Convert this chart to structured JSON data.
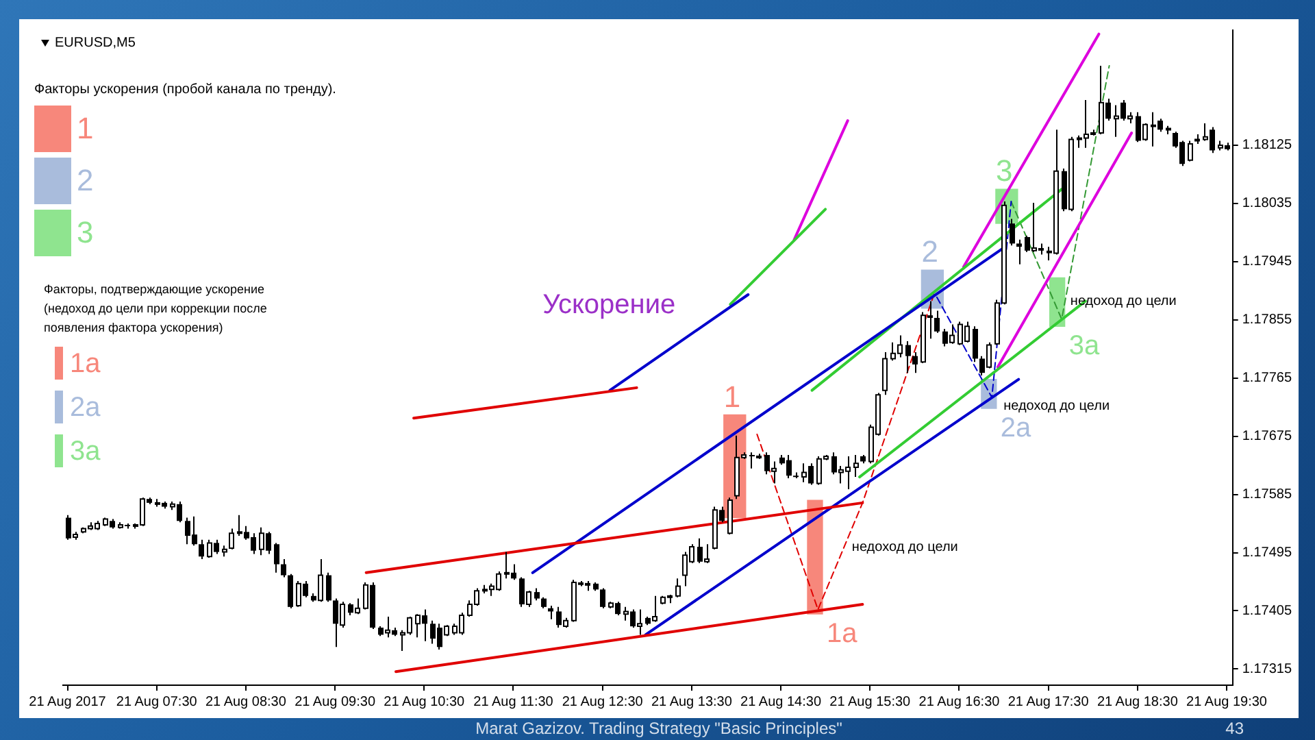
{
  "chart_data": {
    "type": "candlestick",
    "title": "EURUSD,M5",
    "x": [
      "2017-08-21T06:30",
      "2017-08-21T06:35",
      "2017-08-21T06:40",
      "2017-08-21T06:45",
      "2017-08-21T06:50",
      "2017-08-21T06:55",
      "2017-08-21T07:00",
      "2017-08-21T07:05",
      "2017-08-21T07:10",
      "2017-08-21T07:15",
      "2017-08-21T07:20",
      "2017-08-21T07:25",
      "2017-08-21T07:30",
      "2017-08-21T07:35",
      "2017-08-21T07:40",
      "2017-08-21T07:45",
      "2017-08-21T07:50",
      "2017-08-21T07:55",
      "2017-08-21T08:00",
      "2017-08-21T08:05",
      "2017-08-21T08:10",
      "2017-08-21T08:15",
      "2017-08-21T08:20",
      "2017-08-21T08:25",
      "2017-08-21T08:30",
      "2017-08-21T08:35",
      "2017-08-21T08:40",
      "2017-08-21T08:45",
      "2017-08-21T08:50",
      "2017-08-21T08:55",
      "2017-08-21T09:00",
      "2017-08-21T09:05",
      "2017-08-21T09:10",
      "2017-08-21T09:15",
      "2017-08-21T09:20",
      "2017-08-21T09:25",
      "2017-08-21T09:30",
      "2017-08-21T09:35",
      "2017-08-21T09:40",
      "2017-08-21T09:45",
      "2017-08-21T09:50",
      "2017-08-21T09:55",
      "2017-08-21T10:00",
      "2017-08-21T10:05",
      "2017-08-21T10:10",
      "2017-08-21T10:15",
      "2017-08-21T10:20",
      "2017-08-21T10:25",
      "2017-08-21T10:30",
      "2017-08-21T10:35",
      "2017-08-21T10:40",
      "2017-08-21T10:45",
      "2017-08-21T10:50",
      "2017-08-21T10:55",
      "2017-08-21T11:00",
      "2017-08-21T11:05",
      "2017-08-21T11:10",
      "2017-08-21T11:15",
      "2017-08-21T11:20",
      "2017-08-21T11:25",
      "2017-08-21T11:30",
      "2017-08-21T11:35",
      "2017-08-21T11:40",
      "2017-08-21T11:45",
      "2017-08-21T11:50",
      "2017-08-21T11:55",
      "2017-08-21T12:00",
      "2017-08-21T12:05",
      "2017-08-21T12:10",
      "2017-08-21T12:15",
      "2017-08-21T12:20",
      "2017-08-21T12:25",
      "2017-08-21T12:30",
      "2017-08-21T12:35",
      "2017-08-21T12:40",
      "2017-08-21T12:45",
      "2017-08-21T12:50",
      "2017-08-21T12:55",
      "2017-08-21T13:00",
      "2017-08-21T13:05",
      "2017-08-21T13:10",
      "2017-08-21T13:15",
      "2017-08-21T13:20",
      "2017-08-21T13:25",
      "2017-08-21T13:30",
      "2017-08-21T13:35",
      "2017-08-21T13:40",
      "2017-08-21T13:45",
      "2017-08-21T13:50",
      "2017-08-21T13:55",
      "2017-08-21T14:00",
      "2017-08-21T14:05",
      "2017-08-21T14:10",
      "2017-08-21T14:15",
      "2017-08-21T14:20",
      "2017-08-21T14:25",
      "2017-08-21T14:30",
      "2017-08-21T14:35",
      "2017-08-21T14:40",
      "2017-08-21T14:45",
      "2017-08-21T14:50",
      "2017-08-21T14:55",
      "2017-08-21T15:00",
      "2017-08-21T15:05",
      "2017-08-21T15:10",
      "2017-08-21T15:15",
      "2017-08-21T15:20",
      "2017-08-21T15:25",
      "2017-08-21T15:30",
      "2017-08-21T15:35",
      "2017-08-21T15:40",
      "2017-08-21T15:45",
      "2017-08-21T15:50",
      "2017-08-21T15:55",
      "2017-08-21T16:00",
      "2017-08-21T16:05",
      "2017-08-21T16:10",
      "2017-08-21T16:15",
      "2017-08-21T16:20",
      "2017-08-21T16:25",
      "2017-08-21T16:30",
      "2017-08-21T16:35",
      "2017-08-21T16:40",
      "2017-08-21T16:45",
      "2017-08-21T16:50",
      "2017-08-21T16:55",
      "2017-08-21T17:00",
      "2017-08-21T17:05",
      "2017-08-21T17:10",
      "2017-08-21T17:15",
      "2017-08-21T17:20",
      "2017-08-21T17:25",
      "2017-08-21T17:30",
      "2017-08-21T17:35",
      "2017-08-21T17:40",
      "2017-08-21T17:45",
      "2017-08-21T17:50",
      "2017-08-21T17:55",
      "2017-08-21T18:00",
      "2017-08-21T18:05",
      "2017-08-21T18:10",
      "2017-08-21T18:15",
      "2017-08-21T18:20",
      "2017-08-21T18:25",
      "2017-08-21T18:30",
      "2017-08-21T18:35",
      "2017-08-21T18:40",
      "2017-08-21T18:45",
      "2017-08-21T18:50",
      "2017-08-21T18:55",
      "2017-08-21T19:00",
      "2017-08-21T19:05",
      "2017-08-21T19:10",
      "2017-08-21T19:15",
      "2017-08-21T19:20",
      "2017-08-21T19:25",
      "2017-08-21T19:30"
    ],
    "ohlc": [
      [
        1.17549,
        1.17553,
        1.17515,
        1.17517
      ],
      [
        1.17519,
        1.17527,
        1.17515,
        1.17523
      ],
      [
        1.17527,
        1.17534,
        1.17525,
        1.17532
      ],
      [
        1.17532,
        1.17542,
        1.1753,
        1.17536
      ],
      [
        1.17532,
        1.17544,
        1.1753,
        1.1754
      ],
      [
        1.17538,
        1.17549,
        1.17536,
        1.17547
      ],
      [
        1.17544,
        1.17547,
        1.17532,
        1.17534
      ],
      [
        1.17534,
        1.17542,
        1.17532,
        1.17538
      ],
      [
        1.17538,
        1.1754,
        1.17532,
        1.17536
      ],
      [
        1.17536,
        1.1754,
        1.17532,
        1.17538
      ],
      [
        1.17538,
        1.1758,
        1.17536,
        1.17578
      ],
      [
        1.17578,
        1.1758,
        1.1757,
        1.17572
      ],
      [
        1.17572,
        1.17578,
        1.17566,
        1.17572
      ],
      [
        1.17572,
        1.17574,
        1.17563,
        1.17566
      ],
      [
        1.17566,
        1.17574,
        1.17561,
        1.1757
      ],
      [
        1.1757,
        1.17574,
        1.17542,
        1.17544
      ],
      [
        1.17544,
        1.17549,
        1.17508,
        1.17521
      ],
      [
        1.17523,
        1.17551,
        1.17506,
        1.17508
      ],
      [
        1.17508,
        1.17515,
        1.17485,
        1.17489
      ],
      [
        1.17489,
        1.17515,
        1.17487,
        1.1751
      ],
      [
        1.1751,
        1.17515,
        1.17493,
        1.17496
      ],
      [
        1.17496,
        1.17506,
        1.17489,
        1.175
      ],
      [
        1.17502,
        1.17532,
        1.175,
        1.17525
      ],
      [
        1.17525,
        1.17553,
        1.17521,
        1.17527
      ],
      [
        1.17527,
        1.17536,
        1.17515,
        1.17517
      ],
      [
        1.17519,
        1.17525,
        1.17493,
        1.17498
      ],
      [
        1.175,
        1.17534,
        1.17491,
        1.17525
      ],
      [
        1.17525,
        1.17527,
        1.17493,
        1.17498
      ],
      [
        1.17508,
        1.1751,
        1.17464,
        1.17477
      ],
      [
        1.17477,
        1.17485,
        1.17457,
        1.1746
      ],
      [
        1.1746,
        1.17462,
        1.17409,
        1.17411
      ],
      [
        1.17413,
        1.17451,
        1.17411,
        1.17447
      ],
      [
        1.17447,
        1.17451,
        1.17426,
        1.17428
      ],
      [
        1.17428,
        1.17432,
        1.17419,
        1.17421
      ],
      [
        1.17421,
        1.17485,
        1.17419,
        1.1746
      ],
      [
        1.1746,
        1.17464,
        1.17419,
        1.17421
      ],
      [
        1.17421,
        1.17424,
        1.17349,
        1.17385
      ],
      [
        1.17383,
        1.17419,
        1.17379,
        1.17415
      ],
      [
        1.17415,
        1.17417,
        1.17398,
        1.17402
      ],
      [
        1.17402,
        1.17424,
        1.174,
        1.17409
      ],
      [
        1.17409,
        1.17449,
        1.17407,
        1.17445
      ],
      [
        1.17445,
        1.17449,
        1.17377,
        1.17379
      ],
      [
        1.17379,
        1.17381,
        1.17366,
        1.17368
      ],
      [
        1.17371,
        1.17396,
        1.17364,
        1.17375
      ],
      [
        1.17375,
        1.17379,
        1.17366,
        1.17368
      ],
      [
        1.17368,
        1.17375,
        1.17343,
        1.17371
      ],
      [
        1.17371,
        1.17396,
        1.17368,
        1.17394
      ],
      [
        1.17385,
        1.174,
        1.17364,
        1.17398
      ],
      [
        1.17398,
        1.17407,
        1.17358,
        1.17385
      ],
      [
        1.17385,
        1.1739,
        1.17354,
        1.17362
      ],
      [
        1.17379,
        1.17385,
        1.17345,
        1.17349
      ],
      [
        1.17368,
        1.17383,
        1.17366,
        1.17381
      ],
      [
        1.17371,
        1.17385,
        1.17368,
        1.17381
      ],
      [
        1.17371,
        1.17402,
        1.17368,
        1.17398
      ],
      [
        1.17398,
        1.17421,
        1.17396,
        1.17415
      ],
      [
        1.17415,
        1.1744,
        1.17413,
        1.17436
      ],
      [
        1.17436,
        1.17445,
        1.17432,
        1.17438
      ],
      [
        1.17438,
        1.17447,
        1.17428,
        1.17443
      ],
      [
        1.17438,
        1.17466,
        1.17436,
        1.17462
      ],
      [
        1.17462,
        1.17496,
        1.17455,
        1.17464
      ],
      [
        1.17464,
        1.17477,
        1.17453,
        1.17455
      ],
      [
        1.17455,
        1.17457,
        1.17411,
        1.17415
      ],
      [
        1.17415,
        1.17436,
        1.17411,
        1.17434
      ],
      [
        1.17434,
        1.1744,
        1.17421,
        1.17424
      ],
      [
        1.17424,
        1.17426,
        1.17409,
        1.17411
      ],
      [
        1.17409,
        1.17413,
        1.17392,
        1.17404
      ],
      [
        1.17404,
        1.17411,
        1.17379,
        1.17383
      ],
      [
        1.17381,
        1.17394,
        1.17379,
        1.1739
      ],
      [
        1.1739,
        1.17453,
        1.17388,
        1.17449
      ],
      [
        1.17449,
        1.17451,
        1.17443,
        1.17445
      ],
      [
        1.17445,
        1.17451,
        1.17436,
        1.17447
      ],
      [
        1.17447,
        1.17449,
        1.17436,
        1.17438
      ],
      [
        1.17438,
        1.1744,
        1.17409,
        1.17411
      ],
      [
        1.17411,
        1.17419,
        1.17409,
        1.17417
      ],
      [
        1.17417,
        1.17419,
        1.17398,
        1.174
      ],
      [
        1.174,
        1.17411,
        1.1739,
        1.17404
      ],
      [
        1.17404,
        1.17407,
        1.17379,
        1.17381
      ],
      [
        1.17381,
        1.17407,
        1.17368,
        1.17385
      ],
      [
        1.17394,
        1.17396,
        1.17383,
        1.17385
      ],
      [
        1.1739,
        1.17428,
        1.17388,
        1.17396
      ],
      [
        1.17417,
        1.17428,
        1.17415,
        1.17426
      ],
      [
        1.17426,
        1.1743,
        1.17417,
        1.17428
      ],
      [
        1.17428,
        1.17455,
        1.17426,
        1.17443
      ],
      [
        1.1746,
        1.17496,
        1.17443,
        1.17491
      ],
      [
        1.17481,
        1.17508,
        1.17479,
        1.17504
      ],
      [
        1.17504,
        1.17517,
        1.17479,
        1.17481
      ],
      [
        1.17481,
        1.17508,
        1.17479,
        1.17485
      ],
      [
        1.17502,
        1.17566,
        1.175,
        1.17561
      ],
      [
        1.17561,
        1.17566,
        1.17542,
        1.17544
      ],
      [
        1.17525,
        1.1758,
        1.17523,
        1.17576
      ],
      [
        1.17583,
        1.17676,
        1.17578,
        1.17642
      ],
      [
        1.17642,
        1.1765,
        1.1764,
        1.17646
      ],
      [
        1.17646,
        1.1765,
        1.17625,
        1.17644
      ],
      [
        1.17644,
        1.17648,
        1.1764,
        1.17644
      ],
      [
        1.17646,
        1.1765,
        1.17616,
        1.17621
      ],
      [
        1.17621,
        1.17636,
        1.17602,
        1.17625
      ],
      [
        1.17642,
        1.17646,
        1.17631,
        1.17633
      ],
      [
        1.17638,
        1.17646,
        1.1761,
        1.17614
      ],
      [
        1.17614,
        1.17619,
        1.1761,
        1.17612
      ],
      [
        1.17612,
        1.17633,
        1.17604,
        1.17619
      ],
      [
        1.17629,
        1.17633,
        1.176,
        1.17602
      ],
      [
        1.17602,
        1.17644,
        1.176,
        1.1764
      ],
      [
        1.1764,
        1.17646,
        1.17638,
        1.17644
      ],
      [
        1.17644,
        1.1765,
        1.17616,
        1.17619
      ],
      [
        1.17619,
        1.17629,
        1.17602,
        1.17623
      ],
      [
        1.17621,
        1.17644,
        1.17593,
        1.17627
      ],
      [
        1.17627,
        1.17646,
        1.17612,
        1.17633
      ],
      [
        1.17644,
        1.17646,
        1.17633,
        1.17636
      ],
      [
        1.17636,
        1.17693,
        1.17633,
        1.17689
      ],
      [
        1.17678,
        1.17742,
        1.17676,
        1.17739
      ],
      [
        1.17746,
        1.17805,
        1.17739,
        1.17795
      ],
      [
        1.17795,
        1.1782,
        1.17792,
        1.17803
      ],
      [
        1.17803,
        1.17831,
        1.17797,
        1.17816
      ],
      [
        1.17816,
        1.17822,
        1.17773,
        1.17799
      ],
      [
        1.17799,
        1.17805,
        1.17773,
        1.17786
      ],
      [
        1.1779,
        1.17867,
        1.17788,
        1.17862
      ],
      [
        1.17862,
        1.17884,
        1.17826,
        1.17858
      ],
      [
        1.17858,
        1.17869,
        1.17835,
        1.17837
      ],
      [
        1.17837,
        1.17841,
        1.17814,
        1.17818
      ],
      [
        1.1782,
        1.17848,
        1.17818,
        1.17831
      ],
      [
        1.17818,
        1.17852,
        1.17816,
        1.17848
      ],
      [
        1.17822,
        1.17852,
        1.1782,
        1.17845
      ],
      [
        1.17841,
        1.17845,
        1.1779,
        1.17795
      ],
      [
        1.17795,
        1.17799,
        1.17769,
        1.17773
      ],
      [
        1.17782,
        1.1782,
        1.1778,
        1.17816
      ],
      [
        1.17818,
        1.17886,
        1.17816,
        1.17881
      ],
      [
        1.17881,
        1.18038,
        1.17879,
        1.18032
      ],
      [
        1.18004,
        1.18011,
        1.1797,
        1.17973
      ],
      [
        1.17973,
        1.17979,
        1.17941,
        1.17968
      ],
      [
        1.17983,
        1.17985,
        1.1796,
        1.17962
      ],
      [
        1.17962,
        1.18036,
        1.1796,
        1.17966
      ],
      [
        1.17966,
        1.17973,
        1.17956,
        1.17962
      ],
      [
        1.17962,
        1.17968,
        1.17947,
        1.17958
      ],
      [
        1.17958,
        1.18149,
        1.17956,
        1.18085
      ],
      [
        1.18085,
        1.18089,
        1.18023,
        1.18026
      ],
      [
        1.18026,
        1.18138,
        1.18023,
        1.18134
      ],
      [
        1.18134,
        1.1814,
        1.18121,
        1.18136
      ],
      [
        1.18136,
        1.18195,
        1.18121,
        1.18142
      ],
      [
        1.18142,
        1.18149,
        1.1814,
        1.18144
      ],
      [
        1.18144,
        1.18248,
        1.18142,
        1.18191
      ],
      [
        1.18191,
        1.18197,
        1.18163,
        1.18166
      ],
      [
        1.18166,
        1.18187,
        1.18138,
        1.1817
      ],
      [
        1.18191,
        1.18195,
        1.18163,
        1.18166
      ],
      [
        1.18166,
        1.18176,
        1.18159,
        1.1817
      ],
      [
        1.1817,
        1.18176,
        1.1813,
        1.18132
      ],
      [
        1.18134,
        1.18159,
        1.18132,
        1.18157
      ],
      [
        1.18157,
        1.18176,
        1.18123,
        1.18153
      ],
      [
        1.18163,
        1.18166,
        1.18146,
        1.18149
      ],
      [
        1.18149,
        1.18155,
        1.18142,
        1.18151
      ],
      [
        1.18144,
        1.18146,
        1.18121,
        1.18123
      ],
      [
        1.1813,
        1.18132,
        1.18093,
        1.18096
      ],
      [
        1.18102,
        1.18132,
        1.181,
        1.18127
      ],
      [
        1.18134,
        1.18142,
        1.18127,
        1.18134
      ],
      [
        1.18134,
        1.18159,
        1.18132,
        1.18138
      ],
      [
        1.18149,
        1.18153,
        1.18113,
        1.18117
      ],
      [
        1.18121,
        1.18132,
        1.18117,
        1.18125
      ],
      [
        1.18125,
        1.18129,
        1.18117,
        1.18119
      ]
    ],
    "xlim": [
      "2017-08-21T06:27",
      "2017-08-21T19:34"
    ],
    "xticks": [
      {
        "value": "2017-08-21T06:30",
        "label": "21 Aug 2017"
      },
      {
        "value": "2017-08-21T07:30",
        "label": "21 Aug 07:30"
      },
      {
        "value": "2017-08-21T08:30",
        "label": "21 Aug 08:30"
      },
      {
        "value": "2017-08-21T09:30",
        "label": "21 Aug 09:30"
      },
      {
        "value": "2017-08-21T10:30",
        "label": "21 Aug 10:30"
      },
      {
        "value": "2017-08-21T11:30",
        "label": "21 Aug 11:30"
      },
      {
        "value": "2017-08-21T12:30",
        "label": "21 Aug 12:30"
      },
      {
        "value": "2017-08-21T13:30",
        "label": "21 Aug 13:30"
      },
      {
        "value": "2017-08-21T14:30",
        "label": "21 Aug 14:30"
      },
      {
        "value": "2017-08-21T15:30",
        "label": "21 Aug 15:30"
      },
      {
        "value": "2017-08-21T16:30",
        "label": "21 Aug 16:30"
      },
      {
        "value": "2017-08-21T17:30",
        "label": "21 Aug 17:30"
      },
      {
        "value": "2017-08-21T18:30",
        "label": "21 Aug 18:30"
      },
      {
        "value": "2017-08-21T19:30",
        "label": "21 Aug 19:30"
      }
    ],
    "ylim": [
      1.1729,
      1.18303
    ],
    "yticks": [
      1.17315,
      1.17405,
      1.17495,
      1.17585,
      1.17675,
      1.17765,
      1.17855,
      1.17945,
      1.18035,
      1.18125
    ],
    "legend": "top left",
    "legend_title": "Факторы ускорения (пробой канала по тренду).",
    "series": [
      {
        "name": "1",
        "type": "bar",
        "color": "#f7877b",
        "x": [
          "2017-08-21T13:59"
        ],
        "base": [
          1.17549
        ],
        "values": [
          0.00159
        ]
      },
      {
        "name": "2",
        "type": "bar",
        "color": "#a9bcdc",
        "x": [
          "2017-08-21T16:12"
        ],
        "base": [
          1.17873
        ],
        "values": [
          0.00059
        ]
      },
      {
        "name": "3",
        "type": "bar",
        "color": "#8fe48f",
        "x": [
          "2017-08-21T17:02"
        ],
        "base": [
          1.18004
        ],
        "values": [
          0.00053
        ]
      },
      {
        "name": "1a",
        "type": "bar",
        "color": "#f7877b",
        "x": [
          "2017-08-21T14:53"
        ],
        "base": [
          1.174
        ],
        "values": [
          0.00176
        ]
      },
      {
        "name": "2a",
        "type": "bar",
        "color": "#a9bcdc",
        "x": [
          "2017-08-21T16:50"
        ],
        "base": [
          1.17718
        ],
        "values": [
          0.00045
        ]
      },
      {
        "name": "3a",
        "type": "bar",
        "color": "#8fe48f",
        "x": [
          "2017-08-21T17:36"
        ],
        "base": [
          1.17845
        ],
        "values": [
          0.00075
        ]
      },
      {
        "type": "line",
        "color": "#e00000",
        "x": [
          "2017-08-21T10:23",
          "2017-08-21T12:53"
        ],
        "values": [
          1.17703,
          1.1775
        ]
      },
      {
        "type": "line",
        "color": "#0000cc",
        "x": [
          "2017-08-21T12:35",
          "2017-08-21T14:08"
        ],
        "values": [
          1.17746,
          1.17894
        ]
      },
      {
        "type": "line",
        "color": "#33cc33",
        "x": [
          "2017-08-21T13:56",
          "2017-08-21T15:00"
        ],
        "values": [
          1.17879,
          1.18026
        ]
      },
      {
        "type": "line",
        "color": "#dd00dd",
        "x": [
          "2017-08-21T14:39",
          "2017-08-21T15:15"
        ],
        "values": [
          1.17979,
          1.18163
        ]
      },
      {
        "type": "line",
        "color": "#e00000",
        "x": [
          "2017-08-21T09:51",
          "2017-08-21T15:25"
        ],
        "values": [
          1.17464,
          1.17572
        ]
      },
      {
        "type": "line",
        "color": "#e00000",
        "x": [
          "2017-08-21T10:11",
          "2017-08-21T15:25"
        ],
        "values": [
          1.17311,
          1.17415
        ]
      },
      {
        "type": "line",
        "color": "#0000cc",
        "x": [
          "2017-08-21T11:43",
          "2017-08-21T17:01"
        ],
        "values": [
          1.17464,
          1.17968
        ]
      },
      {
        "type": "line",
        "color": "#0000cc",
        "x": [
          "2017-08-21T12:59",
          "2017-08-21T17:10"
        ],
        "values": [
          1.17368,
          1.17763
        ]
      },
      {
        "type": "line",
        "color": "#33cc33",
        "x": [
          "2017-08-21T15:23",
          "2017-08-21T17:55"
        ],
        "values": [
          1.17612,
          1.17884
        ]
      },
      {
        "type": "line",
        "color": "#33cc33",
        "x": [
          "2017-08-21T14:51",
          "2017-08-21T17:39"
        ],
        "values": [
          1.17746,
          1.18057
        ]
      },
      {
        "type": "line",
        "color": "#dd00dd",
        "x": [
          "2017-08-21T16:33",
          "2017-08-21T18:04"
        ],
        "values": [
          1.17937,
          1.18297
        ]
      },
      {
        "type": "line",
        "color": "#dd00dd",
        "x": [
          "2017-08-21T16:56",
          "2017-08-21T18:26"
        ],
        "values": [
          1.17782,
          1.18144
        ]
      },
      {
        "type": "line",
        "color": "#e00000",
        "line_style": "dashed",
        "x": [
          "2017-08-21T14:14",
          "2017-08-21T14:55",
          "2017-08-21T15:25",
          "2017-08-21T16:13"
        ],
        "values": [
          1.17678,
          1.17407,
          1.17572,
          1.17894
        ]
      },
      {
        "type": "line",
        "color": "#0000cc",
        "line_style": "dashed",
        "x": [
          "2017-08-21T16:15",
          "2017-08-21T16:52",
          "2017-08-21T17:05"
        ],
        "values": [
          1.1789,
          1.17735,
          1.18038
        ]
      },
      {
        "type": "line",
        "color": "#339933",
        "line_style": "dashed",
        "x": [
          "2017-08-21T17:05",
          "2017-08-21T17:39",
          "2017-08-21T18:11"
        ],
        "values": [
          1.18038,
          1.17856,
          1.18248
        ]
      }
    ],
    "annotations": [
      "Факторы, подтверждающие ускорение (недоход до цели при коррекции после появления фактора ускорения)",
      "Ускорение",
      {
        "text": "недоход до цели",
        "x": "2017-08-21T15:16",
        "y": 1.17498
      },
      {
        "text": "недоход до цели",
        "x": "2017-08-21T16:58",
        "y": 1.17716
      },
      {
        "text": "недоход до цели",
        "x": "2017-08-21T17:43",
        "y": 1.17878
      },
      "Marat Gazizov. Trading Strategy \"Basic Principles\"",
      "43"
    ]
  }
}
